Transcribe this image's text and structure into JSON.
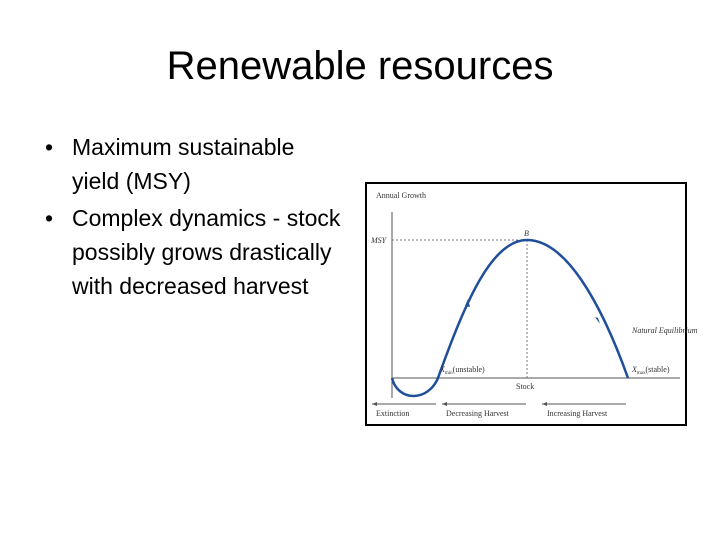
{
  "header": {
    "title": "Renewable resources"
  },
  "bullets": [
    "Maximum sustainable yield (MSY)",
    "Complex dynamics - stock possibly grows drastically with decreased harvest"
  ],
  "figure": {
    "y_axis_label": "Annual Growth",
    "msy_label": "MSY",
    "peak_label": "B",
    "unstable_point": {
      "symbol": "X",
      "subscript": "min",
      "suffix": "(unstable)"
    },
    "x_axis_label": "Stock",
    "equilibrium_label": "Natural Equilibrium",
    "stable_point": {
      "symbol": "X",
      "subscript": "max",
      "suffix": "(stable)"
    },
    "regions": [
      "Extinction",
      "Decreasing Harvest",
      "Increasing Harvest"
    ]
  }
}
